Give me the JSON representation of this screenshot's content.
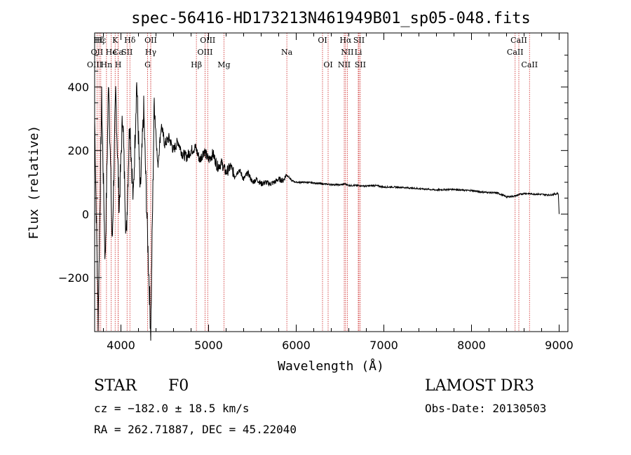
{
  "chart_data": {
    "type": "line",
    "title": "spec-56416-HD173213N461949B01_sp05-048.fits",
    "xlabel": "Wavelength (Å)",
    "ylabel": "Flux (relative)",
    "xlim": [
      3700,
      9100
    ],
    "ylim": [
      -370,
      570
    ],
    "xticks": [
      4000,
      5000,
      6000,
      7000,
      8000,
      9000
    ],
    "yticks": [
      -200,
      0,
      200,
      400
    ],
    "series": [
      {
        "name": "spectrum",
        "x": [
          3700,
          3740,
          3780,
          3820,
          3860,
          3900,
          3940,
          3980,
          4020,
          4060,
          4100,
          4140,
          4180,
          4220,
          4260,
          4300,
          4340,
          4380,
          4420,
          4460,
          4500,
          4550,
          4600,
          4650,
          4700,
          4750,
          4800,
          4850,
          4900,
          4950,
          5000,
          5050,
          5100,
          5150,
          5200,
          5250,
          5300,
          5350,
          5400,
          5450,
          5500,
          5550,
          5600,
          5650,
          5700,
          5750,
          5800,
          5850,
          5890,
          5950,
          6000,
          6100,
          6200,
          6300,
          6400,
          6500,
          6560,
          6600,
          6700,
          6800,
          6900,
          7000,
          7100,
          7200,
          7300,
          7400,
          7500,
          7600,
          7700,
          7800,
          7900,
          8000,
          8100,
          8200,
          8300,
          8400,
          8450,
          8500,
          8550,
          8600,
          8700,
          8800,
          8900,
          8990,
          9000
        ],
        "values": [
          300,
          -330,
          360,
          -150,
          430,
          -100,
          380,
          20,
          320,
          -80,
          300,
          40,
          420,
          60,
          330,
          -40,
          -370,
          360,
          150,
          280,
          220,
          240,
          200,
          230,
          190,
          180,
          200,
          210,
          170,
          200,
          170,
          190,
          150,
          160,
          130,
          150,
          120,
          140,
          110,
          130,
          100,
          110,
          95,
          100,
          95,
          100,
          110,
          105,
          125,
          105,
          100,
          100,
          98,
          95,
          93,
          92,
          95,
          90,
          90,
          88,
          90,
          85,
          85,
          84,
          82,
          80,
          78,
          76,
          77,
          78,
          75,
          74,
          70,
          68,
          66,
          54,
          55,
          57,
          62,
          65,
          63,
          62,
          60,
          65,
          0
        ]
      }
    ],
    "spectral_lines": [
      {
        "label": "Hζ",
        "x": 3750,
        "row": 1
      },
      {
        "label": "Hε",
        "x": 3770,
        "row": 1
      },
      {
        "label": "K",
        "x": 3934,
        "row": 1
      },
      {
        "label": "Hδ",
        "x": 4102,
        "row": 1
      },
      {
        "label": "OII",
        "x": 4340,
        "row": 1
      },
      {
        "label": "OIII",
        "x": 4990,
        "row": 1
      },
      {
        "label": "OI",
        "x": 6300,
        "row": 1
      },
      {
        "label": "Hα",
        "x": 6563,
        "row": 1
      },
      {
        "label": "SII",
        "x": 6716,
        "row": 1
      },
      {
        "label": "CaII",
        "x": 8540,
        "row": 1
      },
      {
        "label": "OII",
        "x": 3727,
        "row": 2
      },
      {
        "label": "He",
        "x": 3889,
        "row": 2
      },
      {
        "label": "Ca",
        "x": 3968,
        "row": 2
      },
      {
        "label": "SII",
        "x": 4070,
        "row": 2
      },
      {
        "label": "Hγ",
        "x": 4340,
        "row": 2
      },
      {
        "label": "OIII",
        "x": 4960,
        "row": 2
      },
      {
        "label": "Na",
        "x": 5893,
        "row": 2
      },
      {
        "label": "NII",
        "x": 6583,
        "row": 2
      },
      {
        "label": "Li",
        "x": 6708,
        "row": 2
      },
      {
        "label": "CaII",
        "x": 8498,
        "row": 2
      },
      {
        "label": "OIII",
        "x": 3700,
        "row": 3
      },
      {
        "label": "Hn",
        "x": 3835,
        "row": 3
      },
      {
        "label": "H",
        "x": 3968,
        "row": 3
      },
      {
        "label": "G",
        "x": 4304,
        "row": 3
      },
      {
        "label": "Hβ",
        "x": 4861,
        "row": 3
      },
      {
        "label": "Mg",
        "x": 5175,
        "row": 3
      },
      {
        "label": "OI",
        "x": 6364,
        "row": 3
      },
      {
        "label": "NII",
        "x": 6548,
        "row": 3
      },
      {
        "label": "SII",
        "x": 6731,
        "row": 3
      },
      {
        "label": "CaII",
        "x": 8662,
        "row": 3
      }
    ]
  },
  "info": {
    "object_class": "STAR",
    "subclass": "F0",
    "survey": "LAMOST DR3",
    "cz": "cz = −182.0 ± 18.5 km/s",
    "obs_date": "Obs-Date: 20130503",
    "coords": "RA = 262.71887, DEC =  45.22040"
  }
}
